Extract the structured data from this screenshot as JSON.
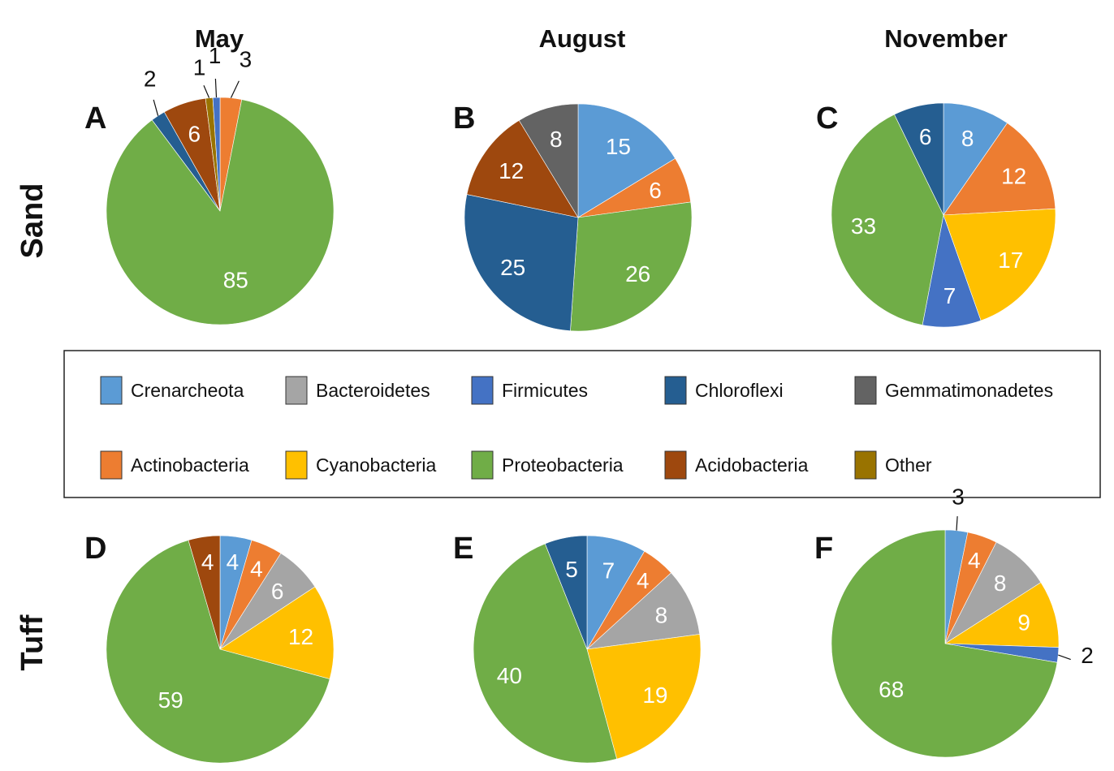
{
  "chart_data": {
    "type": "pie",
    "column_titles": [
      "May",
      "August",
      "November"
    ],
    "row_labels": [
      "Sand",
      "Tuff"
    ],
    "colors": {
      "Crenarcheota": "#5b9bd5",
      "Bacteroidetes": "#a5a5a5",
      "Firmicutes": "#4472c4",
      "Chloroflexi": "#255e91",
      "Gemmatimonadetes": "#636363",
      "Actinobacteria": "#ed7d31",
      "Cyanobacteria": "#ffc000",
      "Proteobacteria": "#70ad47",
      "Acidobacteria": "#9e480e",
      "Other": "#997300"
    },
    "legend": {
      "row1": [
        "Crenarcheota",
        "Bacteroidetes",
        "Firmicutes",
        "Chloroflexi",
        "Gemmatimonadetes"
      ],
      "row2": [
        "Actinobacteria",
        "Cyanobacteria",
        "Proteobacteria",
        "Acidobacteria",
        "Other"
      ]
    },
    "panels": [
      {
        "letter": "A",
        "row": "Sand",
        "month": "May",
        "slices": [
          {
            "name": "Actinobacteria",
            "value": 3
          },
          {
            "name": "Proteobacteria",
            "value": 85
          },
          {
            "name": "Chloroflexi",
            "value": 2
          },
          {
            "name": "Acidobacteria",
            "value": 6
          },
          {
            "name": "Other",
            "value": 1
          },
          {
            "name": "Firmicutes",
            "value": 1
          }
        ]
      },
      {
        "letter": "B",
        "row": "Sand",
        "month": "August",
        "slices": [
          {
            "name": "Crenarcheota",
            "value": 15
          },
          {
            "name": "Actinobacteria",
            "value": 6
          },
          {
            "name": "Proteobacteria",
            "value": 26
          },
          {
            "name": "Chloroflexi",
            "value": 25
          },
          {
            "name": "Acidobacteria",
            "value": 12
          },
          {
            "name": "Gemmatimonadetes",
            "value": 8
          }
        ]
      },
      {
        "letter": "C",
        "row": "Sand",
        "month": "November",
        "slices": [
          {
            "name": "Crenarcheota",
            "value": 8
          },
          {
            "name": "Actinobacteria",
            "value": 12
          },
          {
            "name": "Cyanobacteria",
            "value": 17
          },
          {
            "name": "Firmicutes",
            "value": 7
          },
          {
            "name": "Proteobacteria",
            "value": 33
          },
          {
            "name": "Chloroflexi",
            "value": 6
          }
        ]
      },
      {
        "letter": "D",
        "row": "Tuff",
        "month": "May",
        "slices": [
          {
            "name": "Crenarcheota",
            "value": 4
          },
          {
            "name": "Actinobacteria",
            "value": 4
          },
          {
            "name": "Bacteroidetes",
            "value": 6
          },
          {
            "name": "Cyanobacteria",
            "value": 12
          },
          {
            "name": "Proteobacteria",
            "value": 59
          },
          {
            "name": "Acidobacteria",
            "value": 4
          }
        ]
      },
      {
        "letter": "E",
        "row": "Tuff",
        "month": "August",
        "slices": [
          {
            "name": "Crenarcheota",
            "value": 7
          },
          {
            "name": "Actinobacteria",
            "value": 4
          },
          {
            "name": "Bacteroidetes",
            "value": 8
          },
          {
            "name": "Cyanobacteria",
            "value": 19
          },
          {
            "name": "Proteobacteria",
            "value": 40
          },
          {
            "name": "Chloroflexi",
            "value": 5
          }
        ]
      },
      {
        "letter": "F",
        "row": "Tuff",
        "month": "November",
        "slices": [
          {
            "name": "Crenarcheota",
            "value": 3
          },
          {
            "name": "Actinobacteria",
            "value": 4
          },
          {
            "name": "Bacteroidetes",
            "value": 8
          },
          {
            "name": "Cyanobacteria",
            "value": 9
          },
          {
            "name": "Firmicutes",
            "value": 2
          },
          {
            "name": "Proteobacteria",
            "value": 68
          }
        ]
      }
    ]
  }
}
